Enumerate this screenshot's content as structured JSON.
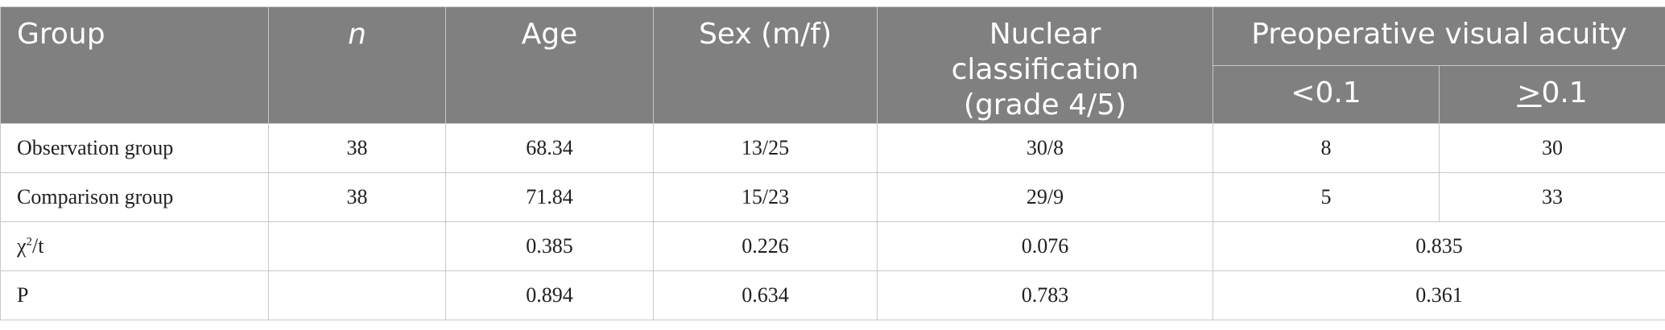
{
  "header": {
    "group": "Group",
    "n": "n",
    "age": "Age",
    "sex": "Sex (m/f)",
    "nuclear_line1": "Nuclear classification",
    "nuclear_line2": "(grade 4/5)",
    "visual_acuity": "Preoperative visual acuity",
    "va_low": "<0.1",
    "va_high_symbol": ">",
    "va_high_value": "0.1"
  },
  "rows": [
    {
      "group": "Observation group",
      "n": "38",
      "age": "68.34",
      "sex": "13/25",
      "nuclear": "30/8",
      "va_low": "8",
      "va_high": "30"
    },
    {
      "group": "Comparison group",
      "n": "38",
      "age": "71.84",
      "sex": "15/23",
      "nuclear": "29/9",
      "va_low": "5",
      "va_high": "33"
    }
  ],
  "stats": [
    {
      "label_base": "χ",
      "label_sup": "2",
      "label_tail": "/t",
      "n": "",
      "age": "0.385",
      "sex": "0.226",
      "nuclear": "0.076",
      "va": "0.835"
    },
    {
      "label": "P",
      "n": "",
      "age": "0.894",
      "sex": "0.634",
      "nuclear": "0.783",
      "va": "0.361"
    }
  ]
}
